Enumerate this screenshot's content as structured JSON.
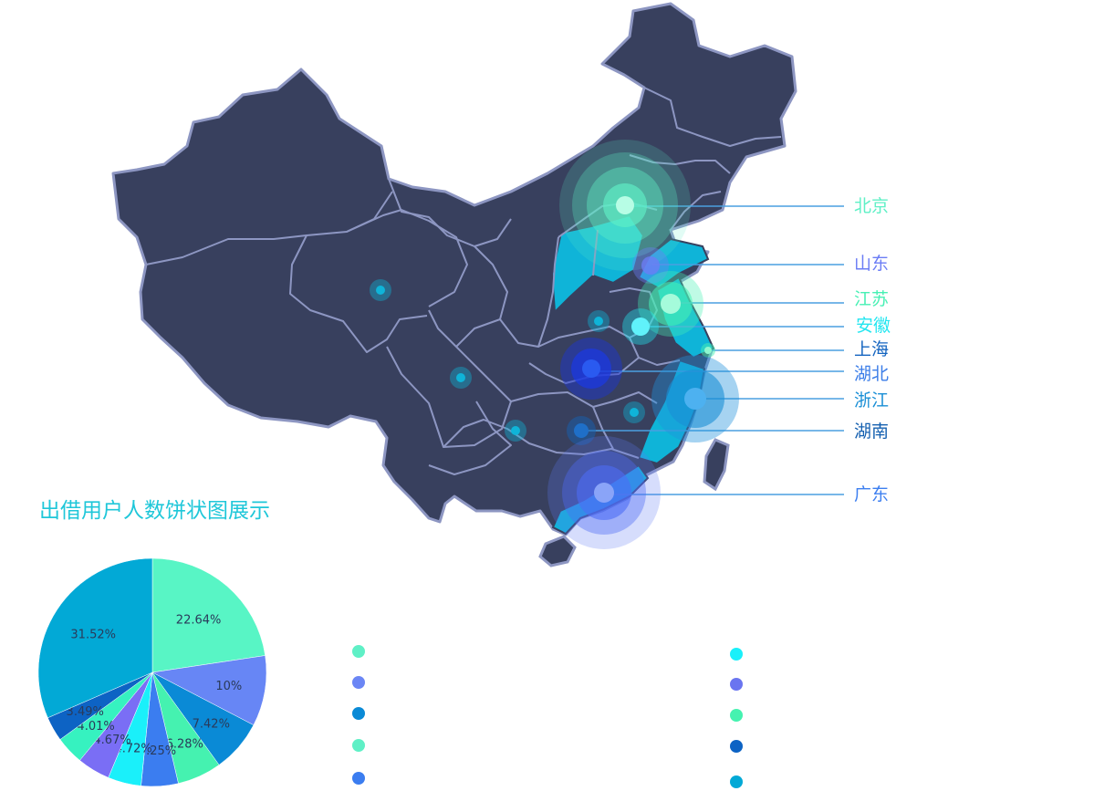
{
  "map": {
    "cities": [
      {
        "name": "北京",
        "color": "#5ff0c6"
      },
      {
        "name": "山东",
        "color": "#6b7df5"
      },
      {
        "name": "江苏",
        "color": "#47f0b4"
      },
      {
        "name": "安徽",
        "color": "#22e6f0"
      },
      {
        "name": "上海",
        "color": "#1565c0"
      },
      {
        "name": "湖北",
        "color": "#3b7de8"
      },
      {
        "name": "浙江",
        "color": "#1a8fd6"
      },
      {
        "name": "湖南",
        "color": "#1560b0"
      },
      {
        "name": "广东",
        "color": "#3d7ff0"
      }
    ],
    "colors": {
      "land": "#38405e",
      "border": "#8d96c2",
      "highlight": "#0fb4d8",
      "leader_line": "#4a9fe0"
    }
  },
  "pie": {
    "title": "出借用户人数饼状图展示",
    "slices": [
      {
        "value": 22.64,
        "label": "22.64%",
        "color": "#58f5c5"
      },
      {
        "value": 10,
        "label": "10%",
        "color": "#6786f5"
      },
      {
        "value": 7.42,
        "label": "7.42%",
        "color": "#0a8ad6"
      },
      {
        "value": 6.28,
        "label": "6.28%",
        "color": "#45f2b0"
      },
      {
        "value": 5.25,
        "label": "5.25%",
        "color": "#3b7df0"
      },
      {
        "value": 4.72,
        "label": "4.72%",
        "color": "#1af0fa"
      },
      {
        "value": 4.67,
        "label": "4.67%",
        "color": "#7a6ef5"
      },
      {
        "value": 4.01,
        "label": "4.01%",
        "color": "#36f2c0"
      },
      {
        "value": 3.49,
        "label": "3.49%",
        "color": "#0d63c4"
      },
      {
        "value": 31.52,
        "label": "31.52%",
        "color": "#02a9d6"
      }
    ]
  },
  "legend": {
    "left_colors": [
      "#5ff0c6",
      "#6b86f5",
      "#0a8ad6",
      "#5ff0c6",
      "#3b7df0"
    ],
    "right_colors": [
      "#1af0fa",
      "#6a75f0",
      "#45f2b0",
      "#0d63c4",
      "#02a9d6"
    ]
  }
}
